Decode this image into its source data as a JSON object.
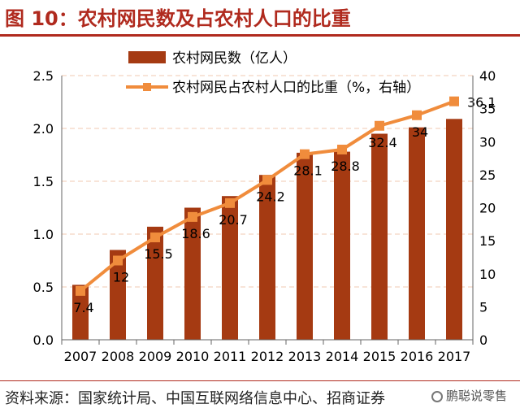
{
  "title": "图 10：农村网民数及占农村人口的比重",
  "source": "资料来源：国家统计局、中国互联网络信息中心、招商证券",
  "watermark": "鹏聪说零售",
  "colors": {
    "bar": "#a53a12",
    "line": "#f08c3c",
    "title": "#b02a1e",
    "grid": "#f2c9b0"
  },
  "chart_data": {
    "type": "bar+line",
    "categories": [
      "2007",
      "2008",
      "2009",
      "2010",
      "2011",
      "2012",
      "2013",
      "2014",
      "2015",
      "2016",
      "2017"
    ],
    "series": [
      {
        "name": "农村网民数（亿人）",
        "type": "bar",
        "axis": "left",
        "values": [
          0.52,
          0.85,
          1.07,
          1.25,
          1.36,
          1.56,
          1.77,
          1.78,
          1.95,
          2.01,
          2.09
        ]
      },
      {
        "name": "农村网民占农村人口的比重（%，右轴）",
        "type": "line",
        "axis": "right",
        "values": [
          7.4,
          12,
          15.5,
          18.6,
          20.7,
          24.2,
          28.1,
          28.8,
          32.4,
          34,
          36.1
        ],
        "labels": [
          "7.4",
          "12",
          "15.5",
          "18.6",
          "20.7",
          "24.2",
          "28.1",
          "28.8",
          "32.4",
          "34",
          "36.1"
        ]
      }
    ],
    "y_left": {
      "min": 0,
      "max": 2.5,
      "ticks": [
        "0.0",
        "0.5",
        "1.0",
        "1.5",
        "2.0",
        "2.5"
      ]
    },
    "y_right": {
      "min": 0,
      "max": 40,
      "ticks": [
        "0",
        "5",
        "10",
        "15",
        "20",
        "25",
        "30",
        "35",
        "40"
      ]
    },
    "legend": [
      "农村网民数（亿人）",
      "农村网民占农村人口的比重（%，右轴）"
    ],
    "grid": true
  }
}
